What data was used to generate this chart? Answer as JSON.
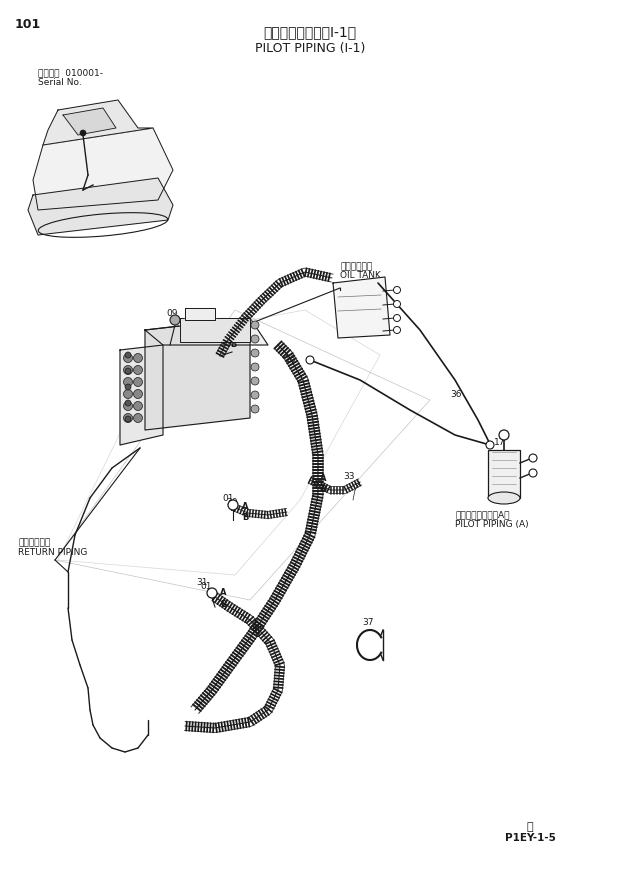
{
  "title_jp": "パイロット配管（I-1）",
  "title_en": "PILOT PIPING (I-1)",
  "page_number": "101",
  "serial_label": "適用号機  010001-",
  "serial_label2": "Serial No.",
  "footer_code": "P1EY-1-5",
  "footer_circle": "Ⓝ",
  "oil_tank_jp": "オイルタンク",
  "oil_tank_en": "OIL TANK",
  "return_piping_jp": "リターン配管",
  "return_piping_en": "RETURN PIPING",
  "pilot_piping_a_jp": "パイロット配管（A）",
  "pilot_piping_a_en": "PILOT PIPING (A)",
  "bg_color": "#ffffff",
  "line_color": "#1a1a1a"
}
